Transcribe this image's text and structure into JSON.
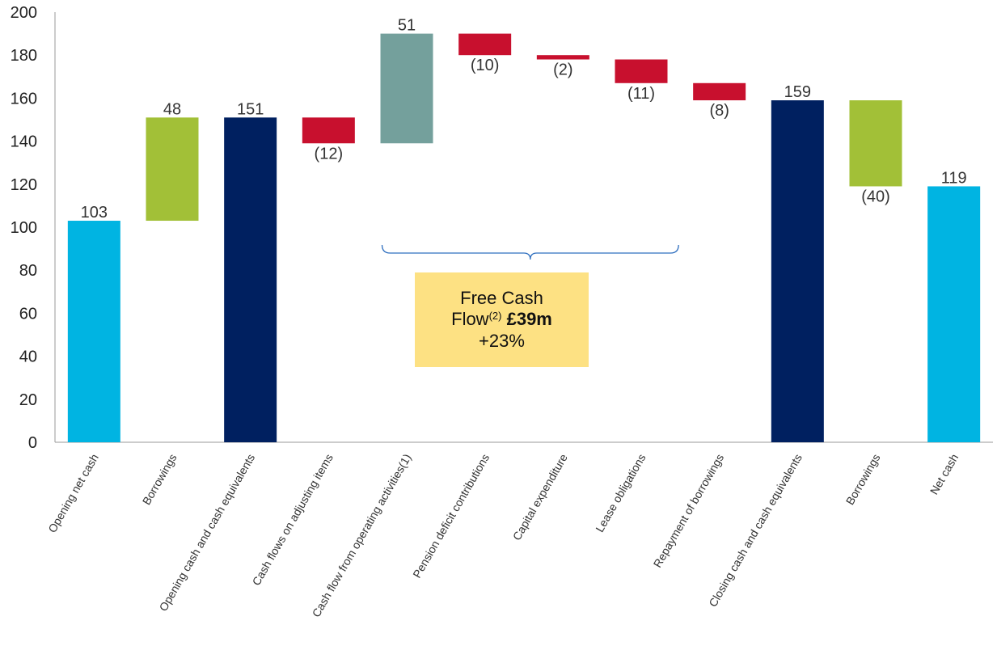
{
  "chart_data": {
    "type": "bar",
    "subtype": "waterfall",
    "ylim": [
      0,
      200
    ],
    "yticks": [
      0,
      20,
      40,
      60,
      80,
      100,
      120,
      140,
      160,
      180,
      200
    ],
    "grid": false,
    "steps": [
      {
        "category": "Opening net cash",
        "kind": "total",
        "value": 103,
        "label": "103",
        "color": "#00b4e2"
      },
      {
        "category": "Borrowings",
        "kind": "change",
        "value": 48,
        "label": "48",
        "color": "#a2c037"
      },
      {
        "category": "Opening cash and cash equivalents",
        "kind": "total",
        "value": 151,
        "label": "151",
        "color": "#002060"
      },
      {
        "category": "Cash flows on adjusting items",
        "kind": "change",
        "value": -12,
        "label": "(12)",
        "color": "#c8102e"
      },
      {
        "category": "Cash flow from operating activities(1)",
        "kind": "change",
        "value": 51,
        "label": "51",
        "color": "#74a09c"
      },
      {
        "category": "Pension deficit contributions",
        "kind": "change",
        "value": -10,
        "label": "(10)",
        "color": "#c8102e"
      },
      {
        "category": "Capital expenditure",
        "kind": "change",
        "value": -2,
        "label": "(2)",
        "color": "#c8102e"
      },
      {
        "category": "Lease obligations",
        "kind": "change",
        "value": -11,
        "label": "(11)",
        "color": "#c8102e"
      },
      {
        "category": "Repayment of borrowings",
        "kind": "change",
        "value": -8,
        "label": "(8)",
        "color": "#c8102e"
      },
      {
        "category": "Closing cash and cash equivalents",
        "kind": "total",
        "value": 159,
        "label": "159",
        "color": "#002060"
      },
      {
        "category": "Borrowings",
        "kind": "change",
        "value": -40,
        "label": "(40)",
        "color": "#a2c037"
      },
      {
        "category": "Net cash",
        "kind": "total",
        "value": 119,
        "label": "119",
        "color": "#00b4e2"
      }
    ],
    "annotation": {
      "line1": "Free Cash",
      "line2_text": "Flow",
      "line2_sup": "(2)",
      "line2_bold": "£39m",
      "line3": "+23%",
      "box_color": "#fde183",
      "brace_color": "#2f6fbf",
      "brace_from_category_index": 4,
      "brace_to_category_index": 8
    }
  }
}
